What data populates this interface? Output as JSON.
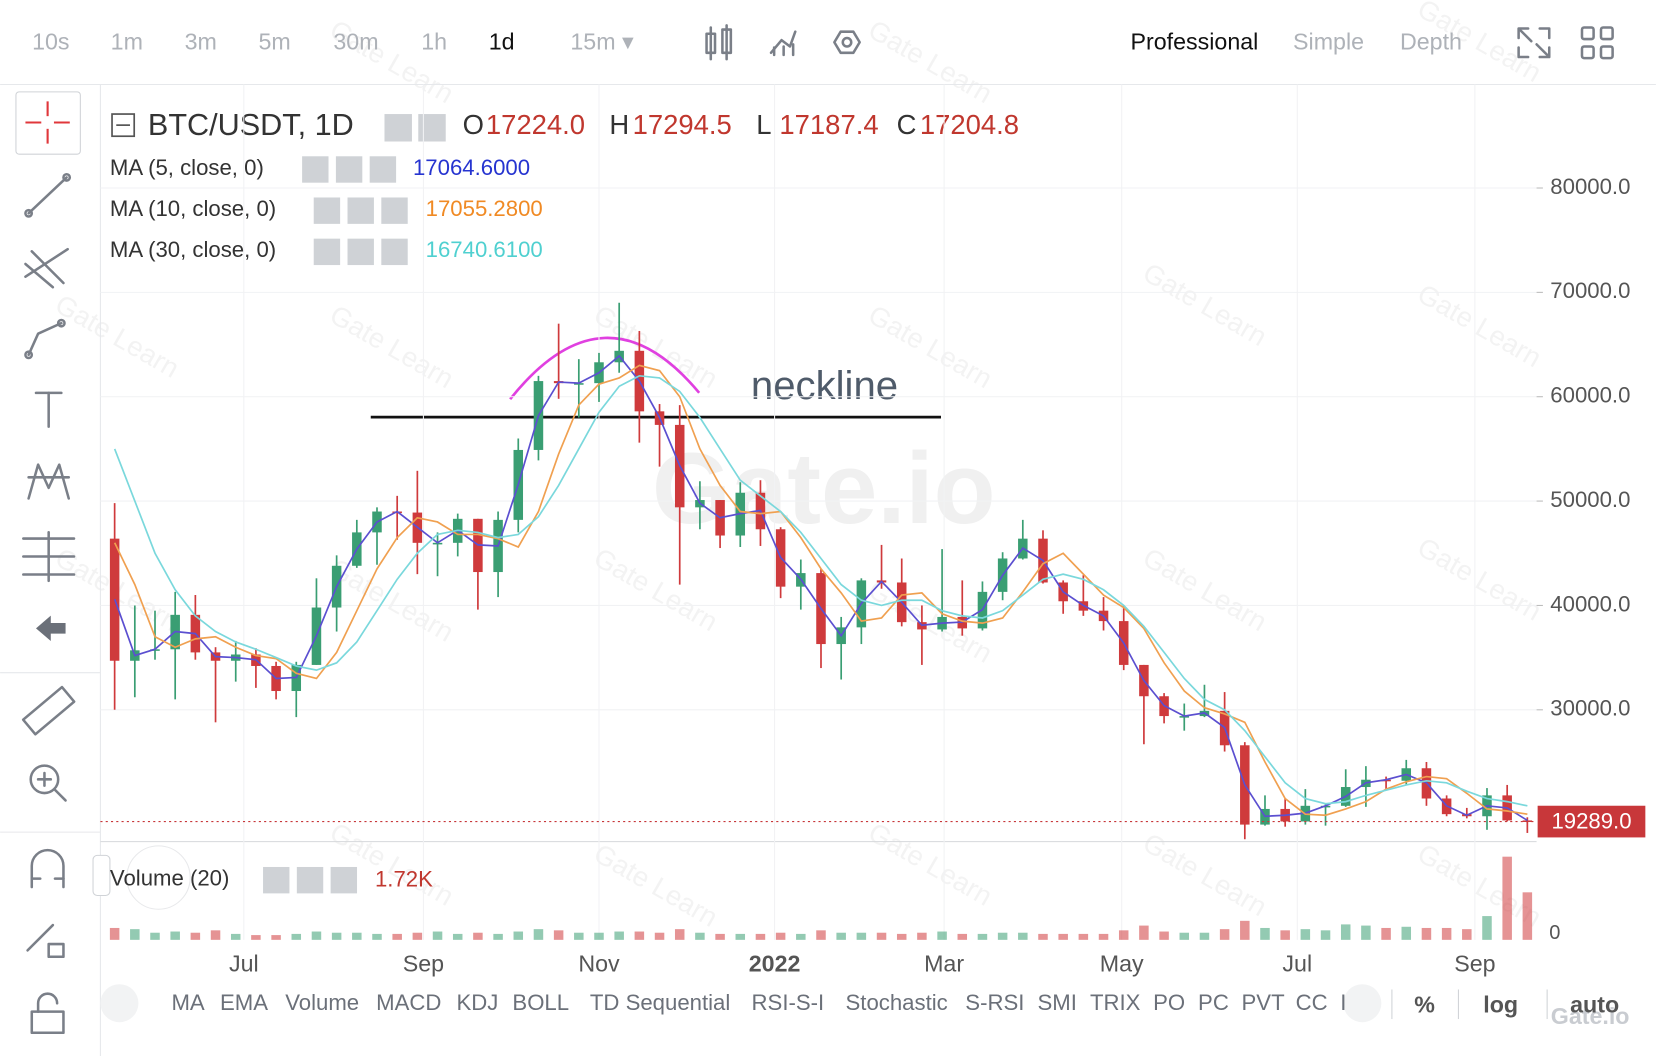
{
  "toolbar": {
    "intervals": [
      "10s",
      "1m",
      "3m",
      "5m",
      "30m",
      "1h",
      "1d",
      "15m ▾"
    ],
    "active_interval": 6,
    "modes": [
      "Professional",
      "Simple",
      "Depth"
    ],
    "active_mode": 0
  },
  "watermark": "Gate.io",
  "watermark_small": "Gate Learn",
  "chart_data": {
    "type": "candlestick",
    "title": "BTC/USDT, 1D",
    "ohlc_header": [
      {
        "letter": "O",
        "text": "17224.0"
      },
      {
        "letter": "H",
        "text": "17294.5"
      },
      {
        "letter": "L",
        "text": "17187.4"
      },
      {
        "letter": "C",
        "text": "17204.8"
      }
    ],
    "up_color": "#3a9e73",
    "down_color": "#cf3a3c",
    "open": [
      46400,
      34700,
      35700,
      35800,
      39100,
      35500,
      34700,
      35300,
      34200,
      31800,
      34300,
      39800,
      43800,
      47000,
      49000,
      48900,
      46000,
      46000,
      48300,
      43200,
      48200,
      54900,
      61500,
      61300,
      61300,
      63300,
      64400,
      58600,
      57300,
      49400,
      50100,
      46700,
      50800,
      47300,
      41800,
      43100,
      36300,
      37900,
      42400,
      42200,
      38400,
      37700,
      38900,
      37800,
      41300,
      44500,
      46400,
      42200,
      40400,
      39500,
      38500,
      34300,
      31300,
      29400,
      29400,
      29900,
      26600,
      19000,
      20500,
      19300,
      20800,
      20800,
      22600,
      23300,
      23200,
      24400,
      21500,
      20000,
      19800,
      21800,
      19400
    ],
    "high": [
      49800,
      40000,
      39500,
      41300,
      41000,
      36000,
      36600,
      35900,
      34600,
      34600,
      42600,
      44800,
      48200,
      49400,
      50500,
      52900,
      47000,
      48800,
      48300,
      49000,
      56000,
      62000,
      67000,
      63600,
      64200,
      69000,
      66300,
      59300,
      59200,
      51900,
      50100,
      51800,
      52000,
      47500,
      44400,
      43500,
      38900,
      42600,
      45800,
      44500,
      40000,
      45400,
      42400,
      42300,
      45100,
      48200,
      47200,
      42400,
      42900,
      40800,
      40000,
      34300,
      31600,
      30600,
      32400,
      31700,
      26900,
      21800,
      21500,
      22400,
      21000,
      24300,
      24600,
      23600,
      25200,
      25000,
      21800,
      20600,
      22500,
      22800,
      19700
    ],
    "low": [
      30000,
      31200,
      34800,
      31000,
      34800,
      28800,
      32700,
      32100,
      31000,
      29300,
      34300,
      37500,
      43600,
      43900,
      46300,
      43000,
      42800,
      44700,
      39600,
      40800,
      47000,
      53900,
      59800,
      58000,
      59500,
      62300,
      55600,
      53300,
      42000,
      47300,
      45500,
      45600,
      45700,
      40700,
      39600,
      34000,
      32900,
      36300,
      41600,
      38000,
      34300,
      37500,
      37100,
      37600,
      40500,
      44400,
      42100,
      39200,
      39000,
      37600,
      33800,
      26700,
      28700,
      28000,
      29300,
      26000,
      17600,
      18900,
      18800,
      19000,
      18900,
      20700,
      20700,
      22400,
      22800,
      20800,
      19800,
      19600,
      18500,
      19300,
      18200
    ],
    "close": [
      34700,
      35700,
      35800,
      39100,
      35500,
      34700,
      35300,
      34200,
      31800,
      34300,
      39800,
      43800,
      47000,
      49000,
      48900,
      46000,
      46000,
      48300,
      43200,
      48200,
      54900,
      61500,
      61300,
      61300,
      63300,
      64400,
      58600,
      57300,
      49400,
      50100,
      46700,
      50800,
      47300,
      41800,
      43100,
      36300,
      37900,
      42400,
      42200,
      38400,
      37700,
      38900,
      37800,
      41300,
      44500,
      46400,
      42200,
      40400,
      39500,
      38500,
      34300,
      31300,
      29400,
      29400,
      29900,
      26600,
      19000,
      20500,
      19300,
      20800,
      20800,
      22600,
      23300,
      23200,
      24400,
      21500,
      20000,
      19800,
      21800,
      19400,
      19300
    ],
    "moving_averages": [
      {
        "name": "MA (5, close, 0)",
        "color": "#2634d0",
        "line_color": "#5b4fd0",
        "value_label": "17064.6000",
        "values": [
          40600,
          35200,
          35800,
          37500,
          37300,
          35100,
          35000,
          34800,
          33000,
          33100,
          37100,
          41800,
          45400,
          48000,
          49000,
          47500,
          46000,
          47200,
          45800,
          45700,
          51600,
          58200,
          61400,
          61300,
          62300,
          63900,
          61500,
          58000,
          53400,
          49800,
          48400,
          48800,
          49100,
          44600,
          42500,
          39700,
          37100,
          40200,
          42300,
          40300,
          38100,
          38300,
          38400,
          39600,
          42900,
          45500,
          44300,
          41300,
          40000,
          39000,
          36400,
          32800,
          30400,
          29400,
          29700,
          28300,
          22800,
          19800,
          19900,
          20100,
          20800,
          21700,
          23000,
          23300,
          23800,
          23000,
          20800,
          19900,
          20800,
          20600,
          19400
        ]
      },
      {
        "name": "MA (10, close, 0)",
        "color": "#f08a24",
        "line_color": "#f0a050",
        "value_label": "17055.2800",
        "values": [
          46000,
          42000,
          37000,
          36000,
          36800,
          37000,
          36000,
          35200,
          34900,
          33500,
          33000,
          35500,
          39500,
          43500,
          46500,
          48400,
          48000,
          46800,
          46800,
          46400,
          45600,
          49000,
          54500,
          59200,
          61200,
          61800,
          63000,
          62500,
          60000,
          55000,
          51500,
          49000,
          48800,
          49000,
          46500,
          43500,
          41200,
          38500,
          38800,
          41000,
          41200,
          39200,
          38500,
          38300,
          38800,
          41300,
          44000,
          45000,
          43000,
          41000,
          39800,
          37800,
          34500,
          31800,
          30200,
          29600,
          28800,
          25000,
          21500,
          20000,
          19900,
          20500,
          21200,
          22400,
          23100,
          23600,
          23400,
          22000,
          20500,
          20300,
          20000
        ]
      },
      {
        "name": "MA (30, close, 0)",
        "color": "#4fd0d0",
        "line_color": "#7ad8dc",
        "value_label": "16740.6100",
        "values": [
          55000,
          50000,
          45000,
          41500,
          39000,
          37500,
          36500,
          35800,
          35000,
          34200,
          33800,
          34500,
          36500,
          39500,
          42500,
          45000,
          46800,
          47200,
          47000,
          46500,
          46800,
          48500,
          51500,
          55000,
          58500,
          61000,
          62000,
          61800,
          60500,
          58000,
          55000,
          52000,
          50500,
          49000,
          47000,
          44500,
          42000,
          40500,
          40000,
          40500,
          40500,
          39500,
          39000,
          38800,
          39500,
          41000,
          42500,
          43000,
          42500,
          41500,
          40000,
          38000,
          35500,
          33000,
          31000,
          30000,
          28000,
          25500,
          23000,
          21500,
          21000,
          21200,
          21800,
          22300,
          22800,
          23200,
          23000,
          22200,
          21500,
          21200,
          20800
        ]
      }
    ],
    "ylim": [
      17570,
      89920
    ],
    "yticks": [
      {
        "value": 30000,
        "label": "30000.0"
      },
      {
        "value": 40000,
        "label": "40000.0"
      },
      {
        "value": 50000,
        "label": "50000.0"
      },
      {
        "value": 60000,
        "label": "60000.0"
      },
      {
        "value": 70000,
        "label": "70000.0"
      },
      {
        "value": 80000,
        "label": "80000.0"
      }
    ],
    "xlim": [
      -0.6,
      70.3
    ],
    "xticks": [
      {
        "value": 6.4,
        "label": "Jul"
      },
      {
        "value": 15.3,
        "label": "Sep"
      },
      {
        "value": 24,
        "label": "Nov"
      },
      {
        "value": 32.7,
        "label": "2022"
      },
      {
        "value": 41.1,
        "label": "Mar"
      },
      {
        "value": 49.9,
        "label": "May"
      },
      {
        "value": 58.6,
        "label": "Jul"
      },
      {
        "value": 67.4,
        "label": "Sep"
      }
    ],
    "grid": true,
    "last_price": {
      "value": 19289,
      "label": "19289.0",
      "color": "#c8373a"
    },
    "annotation": "neckline",
    "volume": {
      "name": "Volume (20)",
      "value_label": "1.72K",
      "ylim": [
        0,
        40000
      ],
      "yticks": [
        0
      ],
      "values": [
        5000,
        4500,
        3000,
        3500,
        3000,
        4000,
        2500,
        2000,
        2000,
        2500,
        3500,
        3000,
        3000,
        2500,
        2500,
        3000,
        3500,
        2500,
        3000,
        2500,
        3500,
        4500,
        4000,
        3000,
        3000,
        3500,
        3500,
        3000,
        4500,
        3000,
        2500,
        2500,
        2500,
        3000,
        2500,
        4000,
        3000,
        3000,
        3000,
        2500,
        3000,
        3500,
        2500,
        2500,
        3000,
        3000,
        2500,
        2500,
        2500,
        2500,
        4000,
        6000,
        3500,
        3000,
        3000,
        4500,
        8000,
        5000,
        4000,
        4500,
        4000,
        6500,
        6000,
        5000,
        5500,
        5000,
        5000,
        4500,
        10000,
        35000,
        20000
      ]
    }
  },
  "indicators": [
    "MA",
    "EMA",
    "Volume",
    "MACD",
    "KDJ",
    "BOLL",
    "TD Sequential",
    "RSI-S-I",
    "Stochastic",
    "S-RSI",
    "SMI",
    "TRIX",
    "PO",
    "PC",
    "PVT",
    "CC",
    "I"
  ],
  "scale_options": [
    "%",
    "log",
    "auto"
  ],
  "logo": "Gate.io"
}
